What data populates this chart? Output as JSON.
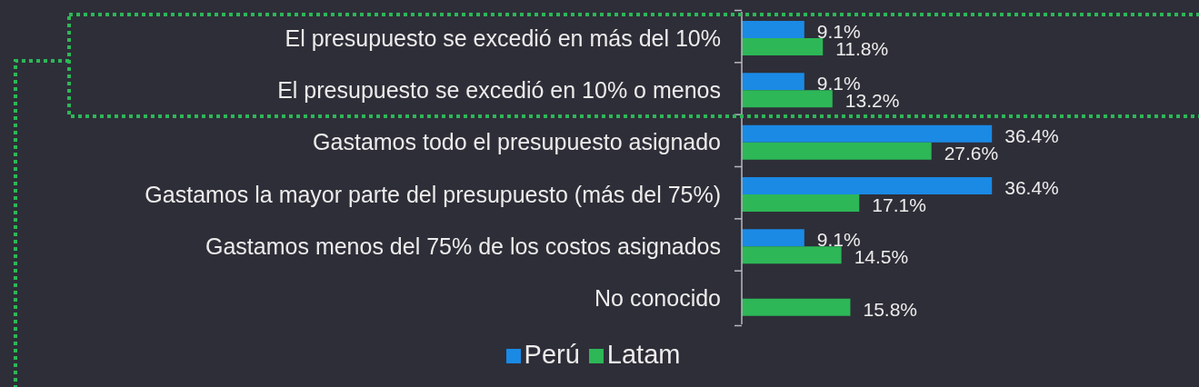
{
  "chart_data": {
    "type": "bar",
    "orientation": "horizontal",
    "categories": [
      "El presupuesto se excedió en más del 10%",
      "El presupuesto se excedió en 10% o menos",
      "Gastamos todo el presupuesto asignado",
      "Gastamos la mayor parte del presupuesto (más del 75%)",
      "Gastamos menos del 75% de los costos asignados",
      "No conocido"
    ],
    "series": [
      {
        "name": "Perú",
        "color": "#1a8ae5",
        "values": [
          9.1,
          9.1,
          36.4,
          36.4,
          9.1,
          null
        ],
        "value_labels": [
          "9.1%",
          "9.1%",
          "36.4%",
          "36.4%",
          "9.1%",
          null
        ]
      },
      {
        "name": "Latam",
        "color": "#2db757",
        "values": [
          11.8,
          13.2,
          27.6,
          17.1,
          14.5,
          15.8
        ],
        "value_labels": [
          "11.8%",
          "13.2%",
          "27.6%",
          "17.1%",
          "14.5%",
          "15.8%"
        ]
      }
    ],
    "xlim": [
      0,
      66
    ],
    "tick_labels": "y",
    "legend": "bottom"
  }
}
